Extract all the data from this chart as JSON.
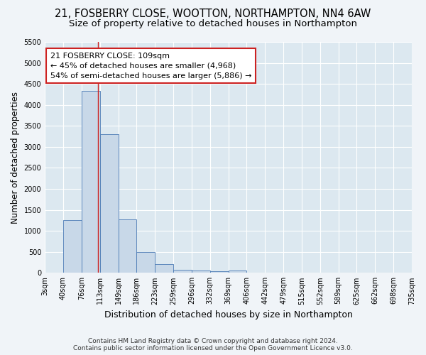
{
  "title": "21, FOSBERRY CLOSE, WOOTTON, NORTHAMPTON, NN4 6AW",
  "subtitle": "Size of property relative to detached houses in Northampton",
  "xlabel": "Distribution of detached houses by size in Northampton",
  "ylabel": "Number of detached properties",
  "footer_line1": "Contains HM Land Registry data © Crown copyright and database right 2024.",
  "footer_line2": "Contains public sector information licensed under the Open Government Licence v3.0.",
  "bin_labels": [
    "3sqm",
    "40sqm",
    "76sqm",
    "113sqm",
    "149sqm",
    "186sqm",
    "223sqm",
    "259sqm",
    "296sqm",
    "332sqm",
    "369sqm",
    "406sqm",
    "442sqm",
    "479sqm",
    "515sqm",
    "552sqm",
    "589sqm",
    "625sqm",
    "662sqm",
    "698sqm",
    "735sqm"
  ],
  "bar_heights": [
    0,
    1260,
    4330,
    3300,
    1280,
    490,
    210,
    75,
    60,
    45,
    55,
    0,
    0,
    0,
    0,
    0,
    0,
    0,
    0,
    0,
    0
  ],
  "bar_color": "#c8d8e8",
  "bar_edge_color": "#4a7ab5",
  "annotation_line1": "21 FOSBERRY CLOSE: 109sqm",
  "annotation_line2": "← 45% of detached houses are smaller (4,968)",
  "annotation_line3": "54% of semi-detached houses are larger (5,886) →",
  "vline_x": 2.9,
  "vline_color": "#cc2222",
  "annotation_box_color": "#cc2222",
  "ylim": [
    0,
    5500
  ],
  "yticks": [
    0,
    500,
    1000,
    1500,
    2000,
    2500,
    3000,
    3500,
    4000,
    4500,
    5000,
    5500
  ],
  "background_color": "#dce8f0",
  "fig_background_color": "#f0f4f8",
  "grid_color": "#ffffff",
  "title_fontsize": 10.5,
  "subtitle_fontsize": 9.5,
  "xlabel_fontsize": 9,
  "ylabel_fontsize": 8.5,
  "tick_fontsize": 7,
  "annotation_fontsize": 8,
  "footer_fontsize": 6.5
}
